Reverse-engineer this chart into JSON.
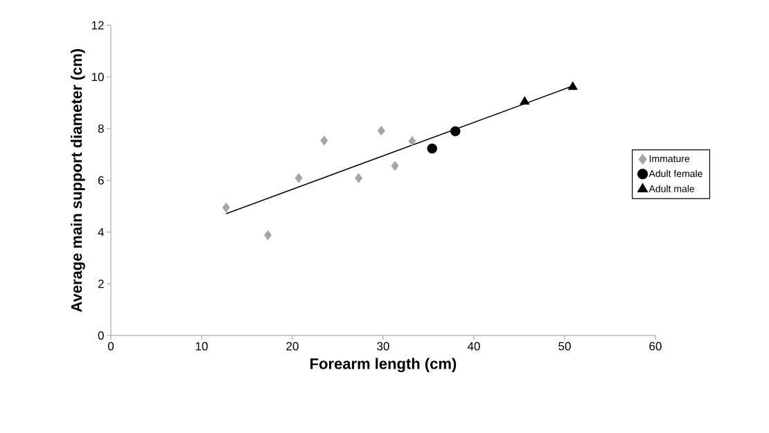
{
  "chart_data": {
    "type": "scatter",
    "xlabel": "Forearm length (cm)",
    "ylabel": "Average main support diameter (cm)",
    "xlim": [
      0,
      60
    ],
    "xticks": [
      0,
      10,
      20,
      30,
      40,
      50,
      60
    ],
    "ylim": [
      0,
      12
    ],
    "yticks": [
      0,
      2,
      4,
      6,
      8,
      10,
      12
    ],
    "grid": false,
    "legend": "right",
    "series": [
      {
        "name": "Immature",
        "color": "#a5a5a5",
        "marker": "diamond",
        "x": [
          12.7,
          17.3,
          20.7,
          23.5,
          27.3,
          29.8,
          31.3,
          33.2
        ],
        "values": [
          4.95,
          3.88,
          6.09,
          7.54,
          6.09,
          7.92,
          6.56,
          7.52
        ]
      },
      {
        "name": "Adult female",
        "color": "#000000",
        "marker": "circle",
        "x": [
          35.4,
          37.96
        ],
        "values": [
          7.23,
          7.9
        ]
      },
      {
        "name": "Adult male",
        "color": "#000000",
        "marker": "triangle",
        "x": [
          45.6,
          50.9
        ],
        "values": [
          9.04,
          9.61
        ]
      },
      {
        "type": "line",
        "color": "#000000",
        "marker": "none",
        "x": [
          12.7,
          50.9
        ],
        "values": [
          4.71,
          9.65
        ]
      }
    ]
  }
}
